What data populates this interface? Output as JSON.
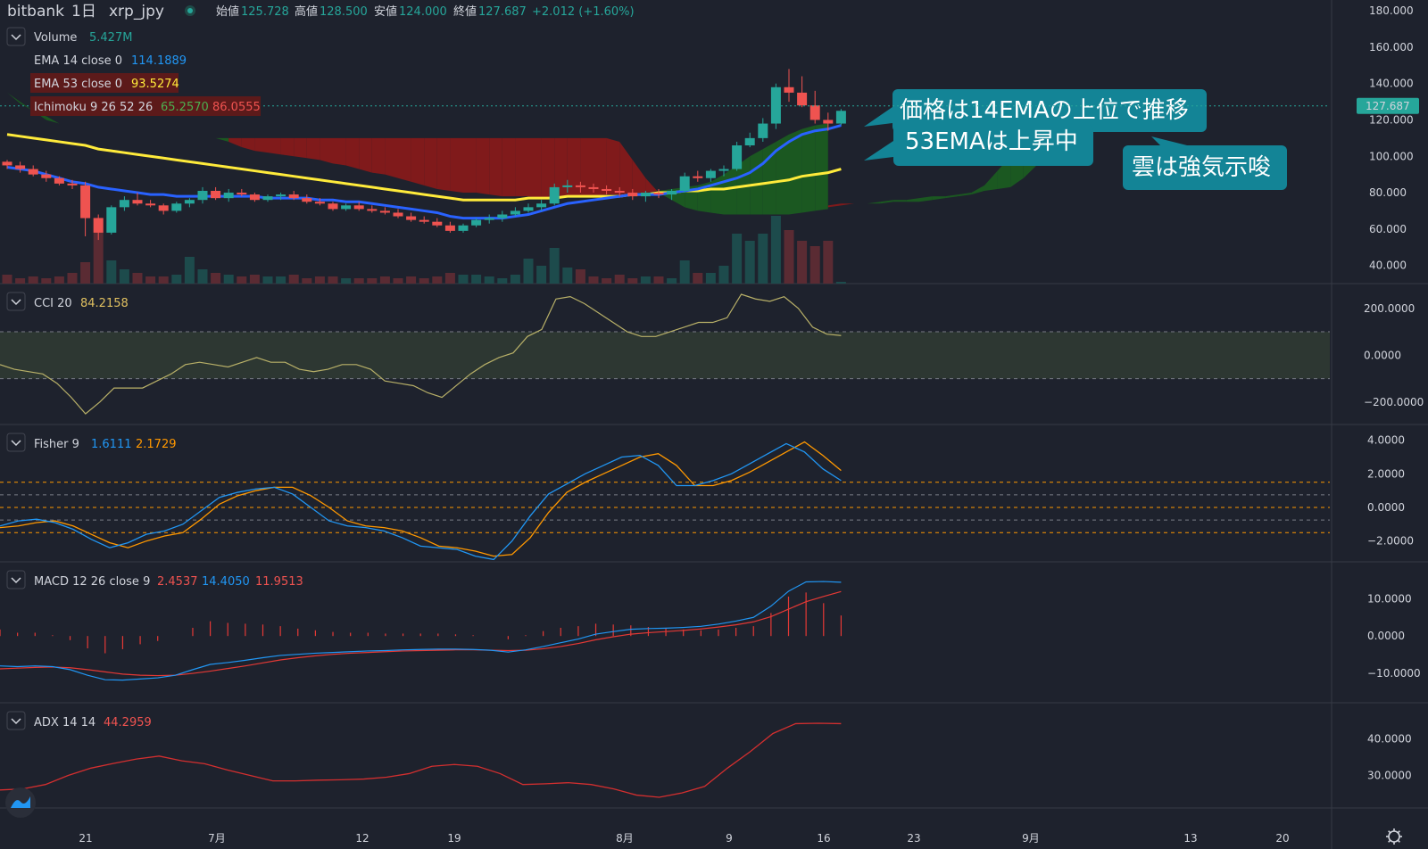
{
  "header": {
    "exchange": "bitbank",
    "interval": "1日",
    "symbol": "xrp_jpy",
    "open_label": "始値",
    "open": "125.728",
    "high_label": "高値",
    "high": "128.500",
    "low_label": "安値",
    "low": "124.000",
    "close_label": "終値",
    "close": "127.687",
    "change": "+2.012 (+1.60%)"
  },
  "colors": {
    "background": "#1e222d",
    "grid": "#2a2e39",
    "up": "#26a69a",
    "down": "#ef5350",
    "ema14": "#2962ff",
    "ema53": "#ffeb3b",
    "cloud_bear": "#8b1a1a",
    "cloud_bull": "#1b5e20",
    "annotation": "#138496",
    "cci": "#b8b068",
    "fisher1": "#2196f3",
    "fisher2": "#ff9800",
    "macd_signal": "#e53935",
    "macd_line": "#2196f3",
    "adx": "#d32f2f"
  },
  "main_pane": {
    "legend": [
      {
        "name": "Volume",
        "value": "5.427M",
        "color": "#26a69a"
      },
      {
        "name": "EMA 14 close 0",
        "value": "114.1889",
        "color": "#2196f3"
      },
      {
        "name": "EMA 53 close 0",
        "value": "93.5274",
        "color": "#ffeb3b"
      },
      {
        "name": "Ichimoku 9 26 52 26",
        "value": "65.2570",
        "value2": "86.0555",
        "color": "#4caf50",
        "color2": "#ef5350"
      }
    ],
    "price_axis": [
      "180.000",
      "160.000",
      "140.000",
      "120.000",
      "100.000",
      "80.000",
      "60.000",
      "40.000"
    ],
    "last_price": "127.687",
    "annotations": [
      "価格は14EMAの上位で推移",
      "53EMAは上昇中",
      "雲は強気示唆"
    ]
  },
  "chart_data": {
    "type": "candlestick",
    "candles": [
      [
        97,
        98,
        93,
        95
      ],
      [
        95,
        97,
        91,
        93
      ],
      [
        93,
        95,
        89,
        90
      ],
      [
        90,
        92,
        86,
        88
      ],
      [
        88,
        89,
        84,
        85
      ],
      [
        85,
        87,
        82,
        84
      ],
      [
        84,
        86,
        56,
        66
      ],
      [
        66,
        68,
        54,
        58
      ],
      [
        58,
        73,
        57,
        72
      ],
      [
        72,
        78,
        70,
        76
      ],
      [
        76,
        80,
        73,
        74
      ],
      [
        74,
        76,
        72,
        73
      ],
      [
        73,
        74,
        68,
        70
      ],
      [
        70,
        75,
        69,
        74
      ],
      [
        74,
        77,
        72,
        76
      ],
      [
        76,
        83,
        74,
        81
      ],
      [
        81,
        83,
        76,
        77
      ],
      [
        77,
        82,
        75,
        80
      ],
      [
        80,
        82,
        78,
        79
      ],
      [
        79,
        80,
        75,
        76
      ],
      [
        76,
        79,
        75,
        78
      ],
      [
        78,
        80,
        76,
        79
      ],
      [
        79,
        81,
        76,
        77
      ],
      [
        77,
        79,
        74,
        75
      ],
      [
        75,
        77,
        73,
        74
      ],
      [
        74,
        75,
        70,
        71
      ],
      [
        71,
        74,
        70,
        73
      ],
      [
        73,
        75,
        70,
        71
      ],
      [
        71,
        73,
        69,
        70
      ],
      [
        70,
        72,
        68,
        69
      ],
      [
        69,
        71,
        66,
        67
      ],
      [
        67,
        69,
        64,
        65
      ],
      [
        65,
        67,
        63,
        64
      ],
      [
        64,
        66,
        61,
        62
      ],
      [
        62,
        64,
        58,
        59
      ],
      [
        59,
        63,
        58,
        62
      ],
      [
        62,
        66,
        61,
        65
      ],
      [
        65,
        68,
        63,
        66
      ],
      [
        66,
        70,
        64,
        68
      ],
      [
        68,
        72,
        67,
        70
      ],
      [
        70,
        74,
        69,
        72
      ],
      [
        72,
        76,
        70,
        74
      ],
      [
        74,
        85,
        73,
        83
      ],
      [
        83,
        87,
        80,
        84
      ],
      [
        84,
        86,
        80,
        83
      ],
      [
        83,
        85,
        80,
        82
      ],
      [
        82,
        84,
        79,
        81
      ],
      [
        81,
        83,
        78,
        80
      ],
      [
        80,
        82,
        76,
        78
      ],
      [
        78,
        81,
        75,
        80
      ],
      [
        80,
        82,
        77,
        79
      ],
      [
        79,
        82,
        76,
        81
      ],
      [
        81,
        91,
        80,
        89
      ],
      [
        89,
        92,
        86,
        88
      ],
      [
        88,
        93,
        86,
        92
      ],
      [
        92,
        95,
        89,
        93
      ],
      [
        93,
        108,
        92,
        106
      ],
      [
        106,
        113,
        105,
        110
      ],
      [
        110,
        121,
        108,
        118
      ],
      [
        118,
        140,
        115,
        138
      ],
      [
        138,
        148,
        130,
        135
      ],
      [
        135,
        144,
        127,
        128
      ],
      [
        128,
        136,
        118,
        120
      ],
      [
        120,
        124,
        114,
        118
      ],
      [
        118,
        126,
        117,
        125
      ]
    ],
    "volume": [
      5,
      3,
      4,
      3,
      4,
      6,
      12,
      37,
      13,
      8,
      6,
      4,
      4,
      5,
      15,
      8,
      6,
      5,
      4,
      5,
      4,
      4,
      5,
      3,
      4,
      4,
      3,
      3,
      3,
      4,
      3,
      4,
      3,
      4,
      6,
      5,
      5,
      4,
      3,
      5,
      14,
      10,
      20,
      9,
      8,
      4,
      3,
      5,
      3,
      4,
      4,
      3,
      13,
      6,
      6,
      10,
      28,
      24,
      28,
      38,
      30,
      24,
      21,
      24,
      1
    ],
    "ema14": [
      94,
      93,
      92,
      90,
      88,
      86,
      85,
      83,
      82,
      81,
      80,
      79,
      79,
      78,
      78,
      78,
      78,
      78,
      78,
      78,
      77,
      77,
      77,
      77,
      76,
      76,
      75,
      75,
      74,
      73,
      72,
      71,
      70,
      69,
      67,
      66,
      66,
      66,
      66,
      67,
      68,
      70,
      72,
      74,
      75,
      76,
      77,
      78,
      79,
      79,
      79,
      80,
      81,
      82,
      84,
      86,
      88,
      91,
      96,
      103,
      108,
      112,
      114,
      115,
      117
    ],
    "ema53": [
      112,
      111,
      110,
      109,
      108,
      107,
      106,
      104,
      103,
      102,
      101,
      100,
      99,
      98,
      97,
      96,
      95,
      94,
      93,
      92,
      91,
      90,
      89,
      88,
      87,
      86,
      85,
      84,
      83,
      82,
      81,
      80,
      79,
      78,
      77,
      76,
      76,
      76,
      76,
      76,
      77,
      77,
      77,
      78,
      78,
      78,
      78,
      78,
      79,
      79,
      80,
      80,
      81,
      81,
      82,
      82,
      83,
      84,
      85,
      86,
      87,
      89,
      90,
      91,
      93
    ],
    "ichimoku": {
      "span_a": [
        140,
        135,
        130,
        125,
        122,
        118,
        117,
        116,
        116,
        116,
        116,
        115,
        114,
        113,
        113,
        112,
        111,
        110,
        108,
        105,
        103,
        102,
        101,
        100,
        99,
        98,
        96,
        95,
        93,
        91,
        90,
        88,
        86,
        84,
        82,
        81,
        80,
        80,
        79,
        78,
        78,
        78,
        77,
        77,
        78,
        78,
        78,
        79,
        79,
        80,
        80,
        81,
        82,
        83,
        84,
        86,
        90,
        95,
        100,
        104,
        108,
        112,
        115,
        117,
        118
      ],
      "span_b": [
        140,
        135,
        129,
        125,
        120,
        118,
        117,
        116,
        116,
        116,
        116,
        115,
        114,
        113,
        113,
        112,
        111,
        110,
        110,
        110,
        110,
        110,
        110,
        110,
        110,
        110,
        110,
        110,
        110,
        110,
        110,
        110,
        110,
        110,
        110,
        110,
        110,
        110,
        110,
        110,
        110,
        110,
        110,
        110,
        110,
        110,
        110,
        110,
        108,
        98,
        88,
        80,
        76,
        72,
        70,
        69,
        68,
        68,
        68,
        68,
        68,
        68,
        69,
        70,
        71
      ],
      "future_a": [
        72,
        73,
        74,
        74,
        75,
        76,
        76,
        77,
        78,
        78,
        79,
        80,
        84,
        92,
        100,
        108,
        110,
        110
      ],
      "future_b": [
        73,
        74,
        74,
        74,
        74,
        75,
        75,
        75,
        76,
        77,
        78,
        79,
        81,
        82,
        83,
        88,
        95,
        100
      ]
    },
    "cci": {
      "legend": "CCI 20",
      "value": "84.2158",
      "axis": [
        "200.0000",
        "0.0000",
        "−200.0000"
      ],
      "band": [
        100,
        -100
      ],
      "ylim": [
        -250,
        260
      ],
      "values": [
        -40,
        -60,
        -70,
        -80,
        -120,
        -180,
        -250,
        -200,
        -140,
        -140,
        -140,
        -110,
        -80,
        -40,
        -30,
        -40,
        -50,
        -30,
        -10,
        -30,
        -30,
        -60,
        -70,
        -60,
        -40,
        -40,
        -60,
        -110,
        -120,
        -130,
        -160,
        -180,
        -130,
        -80,
        -40,
        -10,
        10,
        80,
        110,
        240,
        250,
        220,
        180,
        140,
        100,
        80,
        80,
        100,
        120,
        140,
        140,
        160,
        260,
        240,
        230,
        250,
        200,
        120,
        90,
        84
      ],
      "span": [
        0,
        60
      ]
    },
    "fisher": {
      "legend": "Fisher 9",
      "value1": "1.6111",
      "value2": "2.1729",
      "axis": [
        "4.0000",
        "2.0000",
        "0.0000",
        "−2.0000"
      ],
      "levels": [
        1.5,
        0.75,
        0,
        -0.75,
        -1.5
      ],
      "ylim": [
        -2.6,
        4.3
      ],
      "f1": [
        -1.1,
        -0.8,
        -0.7,
        -0.9,
        -1.3,
        -1.9,
        -2.4,
        -2.1,
        -1.6,
        -1.4,
        -1.0,
        -0.2,
        0.6,
        0.9,
        1.1,
        1.2,
        0.8,
        0.0,
        -0.8,
        -1.1,
        -1.2,
        -1.4,
        -1.8,
        -2.3,
        -2.4,
        -2.5,
        -2.9,
        -3.1,
        -2.0,
        -0.5,
        0.8,
        1.4,
        2.0,
        2.5,
        3.0,
        3.1,
        2.5,
        1.3,
        1.3,
        1.6,
        2.0,
        2.6,
        3.2,
        3.8,
        3.3,
        2.3,
        1.6
      ],
      "f2": [
        -1.2,
        -1.1,
        -0.9,
        -0.8,
        -1.1,
        -1.6,
        -2.1,
        -2.4,
        -2.0,
        -1.7,
        -1.5,
        -0.7,
        0.2,
        0.7,
        1.0,
        1.2,
        1.2,
        0.7,
        0.0,
        -0.8,
        -1.1,
        -1.2,
        -1.4,
        -1.8,
        -2.3,
        -2.4,
        -2.6,
        -2.9,
        -2.8,
        -1.8,
        -0.3,
        0.9,
        1.5,
        2.0,
        2.5,
        3.0,
        3.2,
        2.5,
        1.3,
        1.3,
        1.6,
        2.1,
        2.7,
        3.3,
        3.9,
        3.1,
        2.2
      ]
    },
    "macd": {
      "legend": "MACD 12 26 close 9",
      "hist_value": "2.4537",
      "macd_value": "14.4050",
      "signal_value": "11.9513",
      "axis": [
        "10.0000",
        "0.0000",
        "−10.0000"
      ],
      "ylim": [
        -15,
        17
      ],
      "macd": [
        -8,
        -8.2,
        -8,
        -8.2,
        -9,
        -10.5,
        -11.7,
        -11.8,
        -11.5,
        -11.2,
        -10.5,
        -9,
        -7.6,
        -7.1,
        -6.5,
        -5.8,
        -5.2,
        -4.9,
        -4.6,
        -4.4,
        -4.2,
        -4.0,
        -3.9,
        -3.7,
        -3.6,
        -3.5,
        -3.5,
        -3.6,
        -3.8,
        -4.3,
        -3.7,
        -2.8,
        -1.8,
        -0.8,
        0.5,
        1.2,
        1.8,
        2.0,
        2.1,
        2.3,
        2.6,
        3.2,
        4.0,
        5.0,
        8.0,
        12.0,
        14.5,
        14.6,
        14.4
      ],
      "signal": [
        -8.8,
        -8.6,
        -8.4,
        -8.3,
        -8.5,
        -9.0,
        -9.6,
        -10.2,
        -10.5,
        -10.6,
        -10.5,
        -10.0,
        -9.4,
        -8.7,
        -8.0,
        -7.2,
        -6.4,
        -5.8,
        -5.3,
        -4.9,
        -4.6,
        -4.4,
        -4.2,
        -4.0,
        -3.9,
        -3.8,
        -3.7,
        -3.7,
        -3.8,
        -3.9,
        -3.8,
        -3.4,
        -2.8,
        -2.0,
        -1.0,
        -0.2,
        0.5,
        0.9,
        1.2,
        1.5,
        1.9,
        2.4,
        3.0,
        3.8,
        5.2,
        7.2,
        9.2,
        10.6,
        11.9
      ]
    },
    "adx": {
      "legend": "ADX 14 14",
      "value": "44.2959",
      "axis": [
        "40.0000",
        "30.0000"
      ],
      "ylim": [
        24,
        47
      ],
      "values": [
        26,
        26.3,
        27.5,
        30,
        32,
        33.3,
        34.5,
        35.3,
        34,
        33.2,
        31.5,
        30,
        28.5,
        28.5,
        28.7,
        28.8,
        29,
        29.5,
        30.5,
        32.5,
        33,
        32.5,
        30.5,
        27.5,
        27.7,
        28,
        27.5,
        26.3,
        24.6,
        24,
        25.2,
        27,
        32,
        36.5,
        41.5,
        44.2,
        44.3,
        44.2
      ]
    },
    "x_axis": [
      "21",
      "7月",
      "12",
      "19",
      "8月",
      "9",
      "16",
      "23",
      "9月",
      "13",
      "20"
    ]
  },
  "tools": {
    "logo": "tradingview-logo",
    "settings": "gear"
  }
}
